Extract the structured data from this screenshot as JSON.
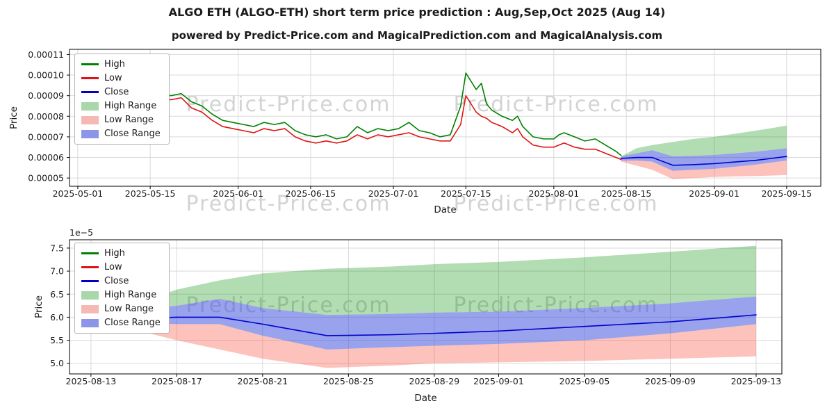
{
  "page": {
    "title": "ALGO ETH (ALGO-ETH) short term price prediction : Aug,Sep,Oct 2025 (Aug 14)",
    "subtitle": "powered by Predict-Price.com and MagicalPrediction.com and MagicalAnalysis.com",
    "watermark": "Predict-Price.com"
  },
  "chart_data": [
    {
      "type": "line",
      "name": "historical-and-forecast",
      "xlabel": "Date",
      "ylabel": "Price",
      "x_unit": "days since 2025-05-01",
      "xlim": [
        -1.6,
        143.6
      ],
      "ylim": [
        4.6e-05,
        0.0001125
      ],
      "grid": true,
      "legend_position": "upper-left",
      "x_tick_values": [
        0,
        14,
        31,
        45,
        61,
        75,
        92,
        106,
        123,
        137
      ],
      "x_tick_labels": [
        "2025-05-01",
        "2025-05-15",
        "2025-06-01",
        "2025-06-15",
        "2025-07-01",
        "2025-07-15",
        "2025-08-01",
        "2025-08-15",
        "2025-09-01",
        "2025-09-15"
      ],
      "y_tick_values": [
        5e-05,
        6e-05,
        7e-05,
        8e-05,
        9e-05,
        0.0001,
        0.00011
      ],
      "y_tick_labels": [
        "0.00005",
        "0.00006",
        "0.00007",
        "0.00008",
        "0.00009",
        "0.00010",
        "0.00011"
      ],
      "bands": [
        {
          "name": "High Range",
          "fill": "rgba(0,140,0,0.30)",
          "x": [
            105,
            108,
            111,
            115,
            119,
            123,
            127,
            131,
            134,
            137
          ],
          "upper": [
            6.05e-05,
            6.45e-05,
            6.6e-05,
            6.75e-05,
            6.9e-05,
            7e-05,
            7.15e-05,
            7.3e-05,
            7.42e-05,
            7.55e-05
          ],
          "lower": [
            6.05e-05,
            6.2e-05,
            6.35e-05,
            6.05e-05,
            6.08e-05,
            6.12e-05,
            6.2e-05,
            6.28e-05,
            6.36e-05,
            6.45e-05
          ]
        },
        {
          "name": "Low Range",
          "fill": "rgba(250,80,60,0.35)",
          "x": [
            105,
            108,
            111,
            115,
            119,
            123,
            127,
            131,
            134,
            137
          ],
          "upper": [
            5.85e-05,
            5.85e-05,
            5.8e-05,
            5.35e-05,
            5.4e-05,
            5.45e-05,
            5.55e-05,
            5.65e-05,
            5.75e-05,
            5.85e-05
          ],
          "lower": [
            5.8e-05,
            5.6e-05,
            5.4e-05,
            4.95e-05,
            5e-05,
            5.05e-05,
            5.08e-05,
            5.1e-05,
            5.12e-05,
            5.15e-05
          ]
        },
        {
          "name": "Close Range",
          "fill": "rgba(50,70,220,0.50)",
          "x": [
            105,
            108,
            111,
            115,
            119,
            123,
            127,
            131,
            134,
            137
          ],
          "upper": [
            6.05e-05,
            6.2e-05,
            6.35e-05,
            6.05e-05,
            6.08e-05,
            6.12e-05,
            6.2e-05,
            6.28e-05,
            6.36e-05,
            6.45e-05
          ],
          "lower": [
            5.85e-05,
            5.85e-05,
            5.8e-05,
            5.35e-05,
            5.4e-05,
            5.45e-05,
            5.55e-05,
            5.65e-05,
            5.75e-05,
            5.85e-05
          ]
        }
      ],
      "series": [
        {
          "name": "High",
          "color": "#008000",
          "x": [
            5,
            6,
            7,
            8,
            9,
            10,
            11,
            12,
            13,
            14,
            16,
            18,
            20,
            22,
            24,
            26,
            28,
            30,
            32,
            34,
            36,
            38,
            40,
            42,
            44,
            46,
            48,
            50,
            52,
            54,
            56,
            58,
            60,
            62,
            64,
            66,
            68,
            70,
            72,
            74,
            75,
            76,
            77,
            78,
            79,
            80,
            82,
            84,
            85,
            86,
            88,
            90,
            92,
            93,
            94,
            96,
            98,
            100,
            102,
            104,
            105
          ],
          "y": [
            0.000108,
            0.0001,
            0.000102,
            9.6e-05,
            9.3e-05,
            9.1e-05,
            9.4e-05,
            9e-05,
            8.8e-05,
            8.9e-05,
            9.1e-05,
            9e-05,
            9.1e-05,
            8.7e-05,
            8.5e-05,
            8.1e-05,
            7.8e-05,
            7.7e-05,
            7.6e-05,
            7.5e-05,
            7.7e-05,
            7.6e-05,
            7.7e-05,
            7.3e-05,
            7.1e-05,
            7e-05,
            7.1e-05,
            6.9e-05,
            7e-05,
            7.5e-05,
            7.2e-05,
            7.4e-05,
            7.3e-05,
            7.4e-05,
            7.7e-05,
            7.3e-05,
            7.2e-05,
            7e-05,
            7.1e-05,
            8.5e-05,
            0.000101,
            9.7e-05,
            9.3e-05,
            9.6e-05,
            8.6e-05,
            8.3e-05,
            8e-05,
            7.8e-05,
            8e-05,
            7.5e-05,
            7e-05,
            6.9e-05,
            6.9e-05,
            7.1e-05,
            7.2e-05,
            7e-05,
            6.8e-05,
            6.9e-05,
            6.6e-05,
            6.3e-05,
            6.1e-05
          ]
        },
        {
          "name": "Low",
          "color": "#e01212",
          "x": [
            5,
            6,
            7,
            8,
            9,
            10,
            11,
            12,
            13,
            14,
            16,
            18,
            20,
            22,
            24,
            26,
            28,
            30,
            32,
            34,
            36,
            38,
            40,
            42,
            44,
            46,
            48,
            50,
            52,
            54,
            56,
            58,
            60,
            62,
            64,
            66,
            68,
            70,
            72,
            74,
            75,
            76,
            77,
            78,
            79,
            80,
            82,
            84,
            85,
            86,
            88,
            90,
            92,
            93,
            94,
            96,
            98,
            100,
            102,
            104,
            105
          ],
          "y": [
            0.0001,
            9.5e-05,
            9.4e-05,
            9.1e-05,
            8.9e-05,
            8.8e-05,
            8.9e-05,
            8.7e-05,
            8.6e-05,
            8.8e-05,
            8.9e-05,
            8.8e-05,
            8.9e-05,
            8.4e-05,
            8.2e-05,
            7.8e-05,
            7.5e-05,
            7.4e-05,
            7.3e-05,
            7.2e-05,
            7.4e-05,
            7.3e-05,
            7.4e-05,
            7e-05,
            6.8e-05,
            6.7e-05,
            6.8e-05,
            6.7e-05,
            6.8e-05,
            7.1e-05,
            6.9e-05,
            7.1e-05,
            7e-05,
            7.1e-05,
            7.2e-05,
            7e-05,
            6.9e-05,
            6.8e-05,
            6.8e-05,
            7.6e-05,
            9e-05,
            8.6e-05,
            8.2e-05,
            8e-05,
            7.9e-05,
            7.7e-05,
            7.5e-05,
            7.2e-05,
            7.4e-05,
            7e-05,
            6.6e-05,
            6.5e-05,
            6.5e-05,
            6.6e-05,
            6.7e-05,
            6.5e-05,
            6.4e-05,
            6.4e-05,
            6.2e-05,
            6e-05,
            5.9e-05
          ]
        },
        {
          "name": "Close",
          "color": "#0000cd",
          "x": [
            105,
            108,
            111,
            115,
            119,
            123,
            127,
            131,
            134,
            137
          ],
          "y": [
            5.95e-05,
            6e-05,
            6e-05,
            5.62e-05,
            5.65e-05,
            5.7e-05,
            5.78e-05,
            5.86e-05,
            5.95e-05,
            6.05e-05
          ]
        }
      ],
      "legend": [
        {
          "label": "High",
          "kind": "line",
          "color": "#008000"
        },
        {
          "label": "Low",
          "kind": "line",
          "color": "#e01212"
        },
        {
          "label": "Close",
          "kind": "line",
          "color": "#0000cd"
        },
        {
          "label": "High Range",
          "kind": "patch",
          "color": "#a9d7a9"
        },
        {
          "label": "Low Range",
          "kind": "patch",
          "color": "#f5b8b2"
        },
        {
          "label": "Close Range",
          "kind": "patch",
          "color": "#8d95e8"
        }
      ]
    },
    {
      "type": "line",
      "name": "forecast-zoom",
      "xlabel": "Date",
      "ylabel": "Price",
      "x_unit": "days since 2025-08-13",
      "y_offset_label": "1e−5",
      "xlim": [
        -1.0,
        32.2
      ],
      "ylim": [
        4.77e-05,
        7.68e-05
      ],
      "grid": true,
      "legend_position": "upper-left",
      "x_tick_values": [
        0,
        4,
        8,
        12,
        16,
        19,
        23,
        27,
        31
      ],
      "x_tick_labels": [
        "2025-08-13",
        "2025-08-17",
        "2025-08-21",
        "2025-08-25",
        "2025-08-29",
        "2025-09-01",
        "2025-09-05",
        "2025-09-09",
        "2025-09-13"
      ],
      "y_tick_values": [
        5e-05,
        5.5e-05,
        6e-05,
        6.5e-05,
        7e-05,
        7.5e-05
      ],
      "y_tick_labels": [
        "5.0",
        "5.5",
        "6.0",
        "6.5",
        "7.0",
        "7.5"
      ],
      "bands": [
        {
          "name": "High Range",
          "fill": "rgba(0,140,0,0.30)",
          "x": [
            1,
            4,
            6,
            8,
            11,
            14,
            16,
            19,
            23,
            27,
            31
          ],
          "upper": [
            6.1e-05,
            6.6e-05,
            6.8e-05,
            6.95e-05,
            7.05e-05,
            7.1e-05,
            7.15e-05,
            7.2e-05,
            7.3e-05,
            7.42e-05,
            7.55e-05
          ],
          "lower": [
            6.1e-05,
            6.25e-05,
            6.4e-05,
            6.2e-05,
            6.05e-05,
            6.07e-05,
            6.1e-05,
            6.12e-05,
            6.2e-05,
            6.3e-05,
            6.45e-05
          ]
        },
        {
          "name": "Low Range",
          "fill": "rgba(250,80,60,0.35)",
          "x": [
            1,
            4,
            6,
            8,
            11,
            14,
            16,
            19,
            23,
            27,
            31
          ],
          "upper": [
            5.9e-05,
            5.85e-05,
            5.85e-05,
            5.6e-05,
            5.3e-05,
            5.35e-05,
            5.38e-05,
            5.42e-05,
            5.5e-05,
            5.65e-05,
            5.85e-05
          ],
          "lower": [
            5.85e-05,
            5.5e-05,
            5.3e-05,
            5.1e-05,
            4.9e-05,
            4.95e-05,
            5e-05,
            5.02e-05,
            5.05e-05,
            5.1e-05,
            5.15e-05
          ]
        },
        {
          "name": "Close Range",
          "fill": "rgba(50,70,220,0.50)",
          "x": [
            1,
            4,
            6,
            8,
            11,
            14,
            16,
            19,
            23,
            27,
            31
          ],
          "upper": [
            6.1e-05,
            6.25e-05,
            6.4e-05,
            6.2e-05,
            6.05e-05,
            6.07e-05,
            6.1e-05,
            6.12e-05,
            6.2e-05,
            6.3e-05,
            6.45e-05
          ],
          "lower": [
            5.9e-05,
            5.85e-05,
            5.85e-05,
            5.6e-05,
            5.3e-05,
            5.35e-05,
            5.38e-05,
            5.42e-05,
            5.5e-05,
            5.65e-05,
            5.85e-05
          ]
        }
      ],
      "series": [
        {
          "name": "High",
          "color": "#008000",
          "x": [
            0,
            1
          ],
          "y": [
            6.05e-05,
            6.1e-05
          ]
        },
        {
          "name": "Low",
          "color": "#e01212",
          "x": [
            0,
            1
          ],
          "y": [
            5.9e-05,
            5.95e-05
          ]
        },
        {
          "name": "Close",
          "color": "#0000cd",
          "x": [
            0,
            1,
            2,
            4,
            6,
            8,
            11,
            14,
            16,
            19,
            23,
            27,
            31
          ],
          "y": [
            5.9e-05,
            5.95e-05,
            5.97e-05,
            6e-05,
            6e-05,
            5.85e-05,
            5.6e-05,
            5.62e-05,
            5.65e-05,
            5.7e-05,
            5.8e-05,
            5.9e-05,
            6.05e-05
          ]
        }
      ],
      "legend": [
        {
          "label": "High",
          "kind": "line",
          "color": "#008000"
        },
        {
          "label": "Low",
          "kind": "line",
          "color": "#e01212"
        },
        {
          "label": "Close",
          "kind": "line",
          "color": "#0000cd"
        },
        {
          "label": "High Range",
          "kind": "patch",
          "color": "#a9d7a9"
        },
        {
          "label": "Low Range",
          "kind": "patch",
          "color": "#f5b8b2"
        },
        {
          "label": "Close Range",
          "kind": "patch",
          "color": "#8d95e8"
        }
      ]
    }
  ]
}
